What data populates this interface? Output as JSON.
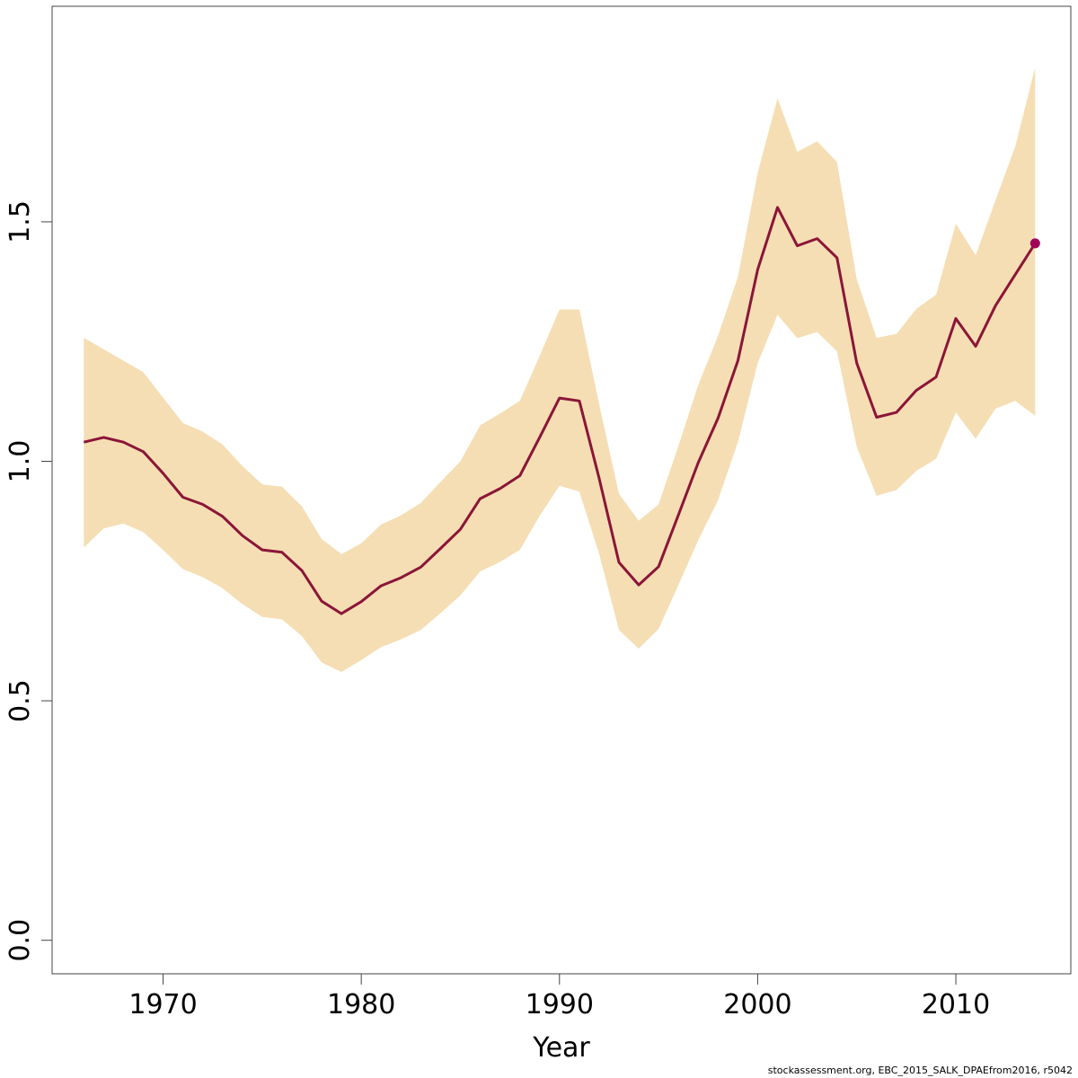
{
  "chart_data": {
    "type": "line",
    "title": "",
    "xlabel": "Year",
    "ylabel": "",
    "xlim": [
      1964.4,
      2015.8
    ],
    "ylim": [
      -0.07,
      1.95
    ],
    "x_ticks": [
      1970,
      1980,
      1990,
      2000,
      2010
    ],
    "x_tick_labels": [
      "1970",
      "1980",
      "1990",
      "2000",
      "2010"
    ],
    "y_ticks": [
      0.0,
      0.5,
      1.0,
      1.5
    ],
    "y_tick_labels": [
      "0.0",
      "0.5",
      "1.0",
      "1.5"
    ],
    "grid": false,
    "legend": "none",
    "colors": {
      "line": "#8b1538",
      "band": "#f5deb3",
      "endpoint": "#a0005a"
    },
    "x": [
      1966,
      1967,
      1968,
      1969,
      1970,
      1971,
      1972,
      1973,
      1974,
      1975,
      1976,
      1977,
      1978,
      1979,
      1980,
      1981,
      1982,
      1983,
      1984,
      1985,
      1986,
      1987,
      1988,
      1989,
      1990,
      1991,
      1992,
      1993,
      1994,
      1995,
      1996,
      1997,
      1998,
      1999,
      2000,
      2001,
      2002,
      2003,
      2004,
      2005,
      2006,
      2007,
      2008,
      2009,
      2010,
      2011,
      2012,
      2013,
      2014
    ],
    "series": [
      {
        "values": [
          1.04,
          1.05,
          1.04,
          1.02,
          0.975,
          0.925,
          0.91,
          0.885,
          0.845,
          0.815,
          0.81,
          0.772,
          0.708,
          0.682,
          0.707,
          0.74,
          0.757,
          0.779,
          0.818,
          0.858,
          0.922,
          0.943,
          0.97,
          1.05,
          1.132,
          1.126,
          0.965,
          0.789,
          0.742,
          0.78,
          0.888,
          0.997,
          1.09,
          1.21,
          1.4,
          1.53,
          1.45,
          1.465,
          1.425,
          1.205,
          1.092,
          1.102,
          1.148,
          1.176,
          1.298,
          1.24,
          1.325,
          1.39,
          1.455
        ]
      }
    ],
    "band": {
      "lower": [
        0.82,
        0.86,
        0.87,
        0.852,
        0.815,
        0.775,
        0.758,
        0.735,
        0.702,
        0.675,
        0.67,
        0.635,
        0.58,
        0.56,
        0.585,
        0.612,
        0.628,
        0.648,
        0.683,
        0.72,
        0.77,
        0.79,
        0.815,
        0.886,
        0.949,
        0.937,
        0.807,
        0.648,
        0.609,
        0.65,
        0.742,
        0.835,
        0.919,
        1.04,
        1.205,
        1.306,
        1.257,
        1.27,
        1.23,
        1.03,
        0.928,
        0.94,
        0.98,
        1.005,
        1.102,
        1.047,
        1.11,
        1.126,
        1.095
      ],
      "upper": [
        1.258,
        1.234,
        1.21,
        1.186,
        1.133,
        1.08,
        1.062,
        1.035,
        0.99,
        0.952,
        0.947,
        0.906,
        0.838,
        0.806,
        0.829,
        0.868,
        0.887,
        0.913,
        0.957,
        1.0,
        1.075,
        1.1,
        1.126,
        1.22,
        1.317,
        1.317,
        1.12,
        0.932,
        0.876,
        0.91,
        1.032,
        1.159,
        1.262,
        1.385,
        1.602,
        1.758,
        1.646,
        1.668,
        1.625,
        1.38,
        1.258,
        1.266,
        1.318,
        1.348,
        1.496,
        1.43,
        1.545,
        1.658,
        1.822
      ]
    },
    "endpoint": {
      "x": 2014,
      "y": 1.455
    }
  },
  "footer_text": "stockassessment.org, EBC_2015_SALK_DPAEfrom2016, r5042"
}
